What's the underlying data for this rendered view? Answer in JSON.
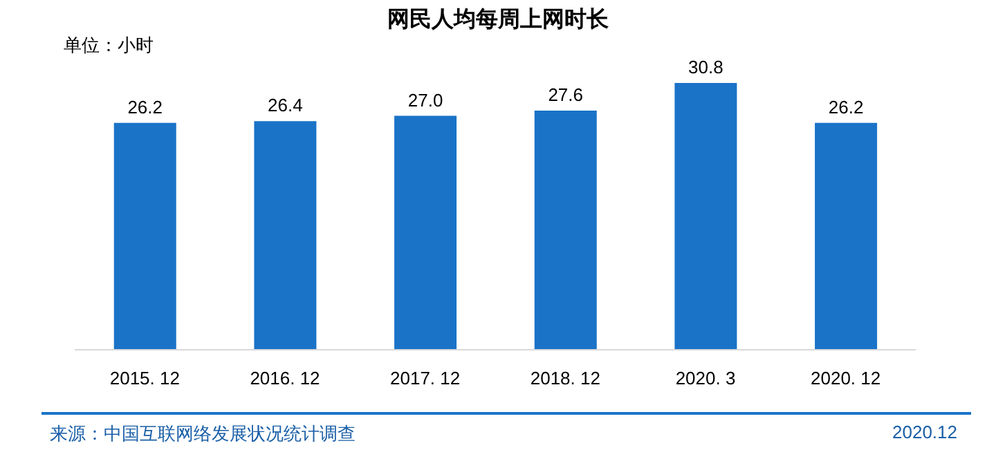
{
  "chart_data": {
    "type": "bar",
    "title": "网民人均每周上网时长",
    "subtitle": "单位：小时",
    "categories": [
      "2015. 12",
      "2016. 12",
      "2017. 12",
      "2018. 12",
      "2020. 3",
      "2020. 12"
    ],
    "values": [
      26.2,
      26.4,
      27.0,
      27.6,
      30.8,
      26.2
    ],
    "value_labels": [
      "26.2",
      "26.4",
      "27.0",
      "27.6",
      "30.8",
      "26.2"
    ],
    "color": "#1a73c7",
    "annotations": [
      "来源：中国互联网络发展状况统计调查",
      "2020.12"
    ]
  }
}
